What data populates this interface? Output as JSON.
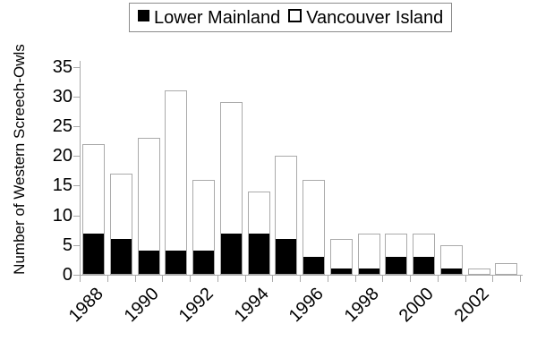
{
  "chart_data": {
    "type": "bar",
    "stacked": true,
    "title": "",
    "ylabel": "Number of Western Screech-Owls",
    "xlabel": "",
    "categories": [
      "1988",
      "1989",
      "1990",
      "1991",
      "1992",
      "1993",
      "1994",
      "1995",
      "1996",
      "1997",
      "1998",
      "1999",
      "2000",
      "2001",
      "2002",
      "2003"
    ],
    "series": [
      {
        "name": "Lower Mainland",
        "color": "#000000",
        "values": [
          7,
          6,
          4,
          4,
          4,
          7,
          7,
          6,
          3,
          1,
          1,
          3,
          3,
          1,
          0,
          0
        ]
      },
      {
        "name": "Vancouver Island",
        "color": "#ffffff",
        "values": [
          15,
          11,
          19,
          27,
          12,
          22,
          7,
          14,
          13,
          5,
          6,
          4,
          4,
          4,
          1,
          2
        ]
      }
    ],
    "stack_totals": [
      22,
      17,
      23,
      31,
      16,
      29,
      14,
      20,
      16,
      6,
      7,
      7,
      7,
      5,
      1,
      2
    ],
    "ylim": [
      0,
      35
    ],
    "y_ticks": [
      0,
      5,
      10,
      15,
      20,
      25,
      30,
      35
    ],
    "x_tick_labels": [
      "1988",
      "1990",
      "1992",
      "1994",
      "1996",
      "1998",
      "2000",
      "2002"
    ],
    "x_label_step": 2,
    "legend_position": "top-center",
    "grid": false
  },
  "colors": {
    "axis": "#aaaaaa",
    "bar_border": "#aaaaaa",
    "lower_mainland": "#000000",
    "vancouver_island": "#ffffff",
    "legend_border": "#8c8c8c",
    "text": "#000000",
    "background": "#ffffff"
  }
}
